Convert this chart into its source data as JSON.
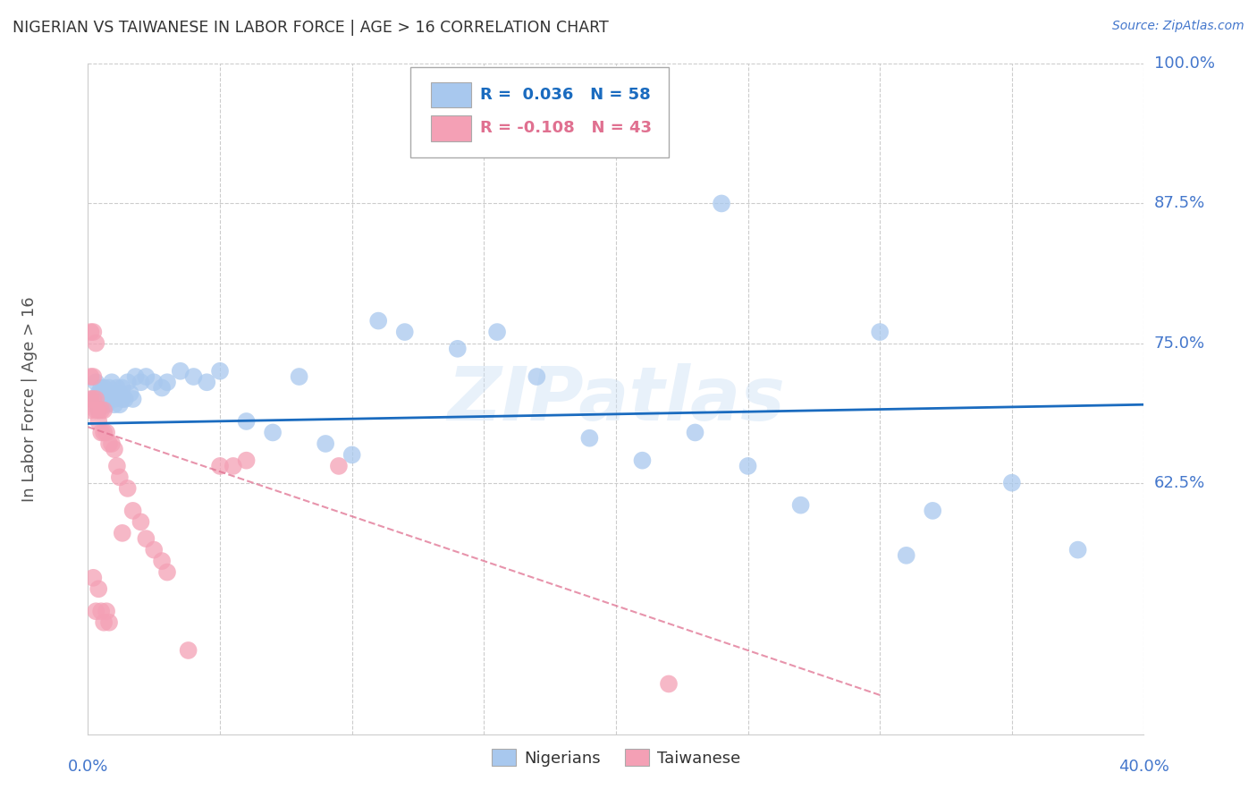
{
  "title": "NIGERIAN VS TAIWANESE IN LABOR FORCE | AGE > 16 CORRELATION CHART",
  "source": "Source: ZipAtlas.com",
  "ylabel": "In Labor Force | Age > 16",
  "watermark": "ZIPatlas",
  "xlim": [
    0.0,
    0.4
  ],
  "ylim": [
    0.4,
    1.0
  ],
  "nigerian_R": 0.036,
  "nigerian_N": 58,
  "taiwanese_R": -0.108,
  "taiwanese_N": 43,
  "nigerian_color": "#a8c8ee",
  "taiwanese_color": "#f4a0b5",
  "nigerian_line_color": "#1a6bbf",
  "taiwanese_line_color": "#e07090",
  "background_color": "#ffffff",
  "grid_color": "#cccccc",
  "label_color": "#4477cc",
  "title_color": "#333333",
  "nigerian_trend_x0": 0.0,
  "nigerian_trend_y0": 0.678,
  "nigerian_trend_x1": 0.4,
  "nigerian_trend_y1": 0.695,
  "taiwanese_trend_x0": 0.0,
  "taiwanese_trend_y0": 0.675,
  "taiwanese_trend_x1": 0.3,
  "taiwanese_trend_y1": 0.435,
  "nigerian_x": [
    0.002,
    0.003,
    0.003,
    0.004,
    0.004,
    0.005,
    0.005,
    0.006,
    0.006,
    0.007,
    0.007,
    0.008,
    0.008,
    0.009,
    0.009,
    0.01,
    0.01,
    0.011,
    0.011,
    0.012,
    0.012,
    0.013,
    0.013,
    0.014,
    0.015,
    0.016,
    0.017,
    0.018,
    0.02,
    0.022,
    0.025,
    0.028,
    0.03,
    0.035,
    0.04,
    0.045,
    0.05,
    0.06,
    0.07,
    0.08,
    0.09,
    0.1,
    0.11,
    0.12,
    0.14,
    0.155,
    0.17,
    0.19,
    0.21,
    0.23,
    0.25,
    0.27,
    0.3,
    0.32,
    0.35,
    0.375,
    0.31,
    0.24
  ],
  "nigerian_y": [
    0.7,
    0.715,
    0.695,
    0.705,
    0.69,
    0.71,
    0.7,
    0.695,
    0.71,
    0.705,
    0.695,
    0.71,
    0.7,
    0.705,
    0.715,
    0.7,
    0.695,
    0.705,
    0.71,
    0.695,
    0.705,
    0.7,
    0.71,
    0.7,
    0.715,
    0.705,
    0.7,
    0.72,
    0.715,
    0.72,
    0.715,
    0.71,
    0.715,
    0.725,
    0.72,
    0.715,
    0.725,
    0.68,
    0.67,
    0.72,
    0.66,
    0.65,
    0.77,
    0.76,
    0.745,
    0.76,
    0.72,
    0.665,
    0.645,
    0.67,
    0.64,
    0.605,
    0.76,
    0.6,
    0.625,
    0.565,
    0.56,
    0.875
  ],
  "taiwanese_x": [
    0.001,
    0.001,
    0.001,
    0.001,
    0.002,
    0.002,
    0.002,
    0.002,
    0.003,
    0.003,
    0.003,
    0.003,
    0.004,
    0.004,
    0.004,
    0.005,
    0.005,
    0.005,
    0.006,
    0.006,
    0.006,
    0.007,
    0.007,
    0.008,
    0.008,
    0.009,
    0.01,
    0.011,
    0.012,
    0.013,
    0.015,
    0.017,
    0.02,
    0.022,
    0.025,
    0.028,
    0.03,
    0.038,
    0.22,
    0.095,
    0.06,
    0.055,
    0.05
  ],
  "taiwanese_y": [
    0.76,
    0.72,
    0.7,
    0.69,
    0.76,
    0.72,
    0.7,
    0.54,
    0.75,
    0.7,
    0.69,
    0.51,
    0.69,
    0.68,
    0.53,
    0.69,
    0.67,
    0.51,
    0.69,
    0.67,
    0.5,
    0.67,
    0.51,
    0.66,
    0.5,
    0.66,
    0.655,
    0.64,
    0.63,
    0.58,
    0.62,
    0.6,
    0.59,
    0.575,
    0.565,
    0.555,
    0.545,
    0.475,
    0.445,
    0.64,
    0.645,
    0.64,
    0.64
  ]
}
